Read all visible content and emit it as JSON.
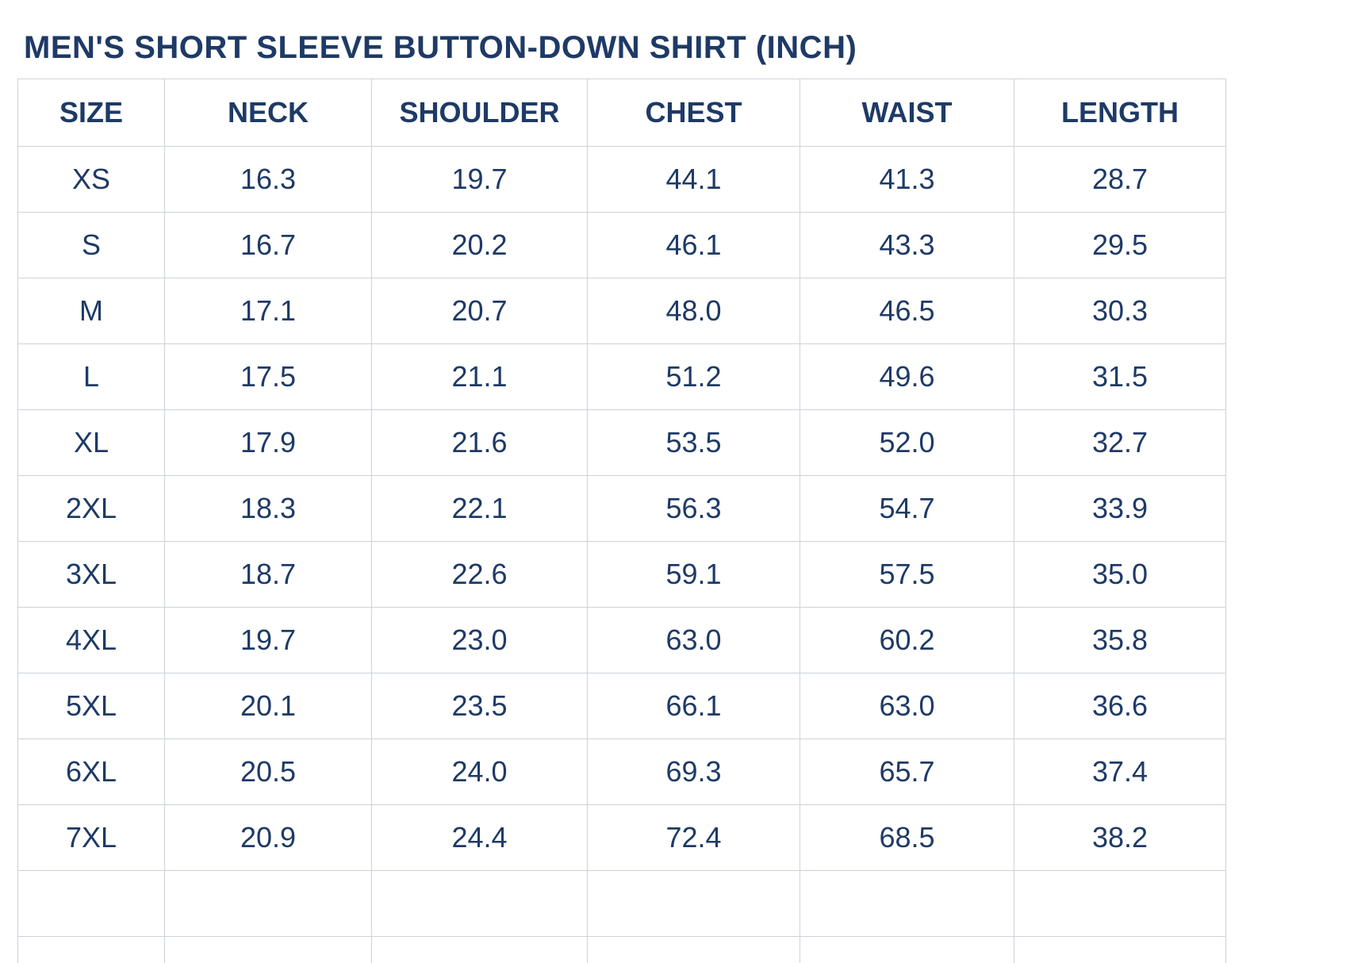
{
  "page": {
    "title": "MEN'S SHORT SLEEVE BUTTON-DOWN SHIRT (INCH)"
  },
  "colors": {
    "text": "#1e3a66",
    "border": "#cdd2da",
    "background": "#ffffff"
  },
  "chart_data": {
    "type": "table",
    "title": "MEN'S SHORT SLEEVE BUTTON-DOWN SHIRT (INCH)",
    "unit": "inch",
    "columns": [
      "SIZE",
      "NECK",
      "SHOULDER",
      "CHEST",
      "WAIST",
      "LENGTH"
    ],
    "rows": [
      [
        "XS",
        "16.3",
        "19.7",
        "44.1",
        "41.3",
        "28.7"
      ],
      [
        "S",
        "16.7",
        "20.2",
        "46.1",
        "43.3",
        "29.5"
      ],
      [
        "M",
        "17.1",
        "20.7",
        "48.0",
        "46.5",
        "30.3"
      ],
      [
        "L",
        "17.5",
        "21.1",
        "51.2",
        "49.6",
        "31.5"
      ],
      [
        "XL",
        "17.9",
        "21.6",
        "53.5",
        "52.0",
        "32.7"
      ],
      [
        "2XL",
        "18.3",
        "22.1",
        "56.3",
        "54.7",
        "33.9"
      ],
      [
        "3XL",
        "18.7",
        "22.6",
        "59.1",
        "57.5",
        "35.0"
      ],
      [
        "4XL",
        "19.7",
        "23.0",
        "63.0",
        "60.2",
        "35.8"
      ],
      [
        "5XL",
        "20.1",
        "23.5",
        "66.1",
        "63.0",
        "36.6"
      ],
      [
        "6XL",
        "20.5",
        "24.0",
        "69.3",
        "65.7",
        "37.4"
      ],
      [
        "7XL",
        "20.9",
        "24.4",
        "72.4",
        "68.5",
        "38.2"
      ]
    ]
  }
}
